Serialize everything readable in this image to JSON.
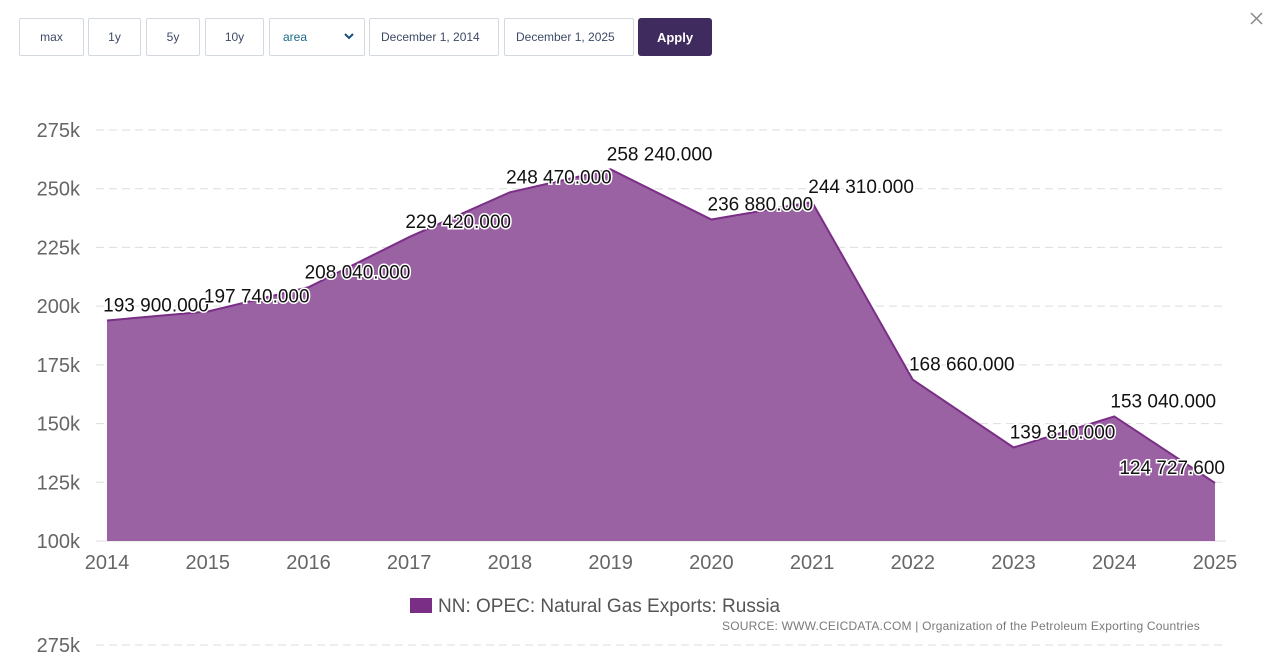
{
  "toolbar": {
    "range_buttons": [
      "max",
      "1y",
      "5y",
      "10y"
    ],
    "chart_type_selected": "area",
    "start_date": "December 1, 2014",
    "end_date": "December 1, 2025",
    "apply_label": "Apply"
  },
  "colors": {
    "area_fill": "#9a62a3",
    "area_line": "#7a2e86",
    "legend_swatch": "#7a2e86",
    "apply_bg": "#3f2b5e"
  },
  "chart_data": {
    "type": "area",
    "x": [
      "2014",
      "2015",
      "2016",
      "2017",
      "2018",
      "2019",
      "2020",
      "2021",
      "2022",
      "2023",
      "2024",
      "2025"
    ],
    "series": [
      {
        "name": "NN: OPEC: Natural Gas Exports: Russia",
        "values": [
          193900,
          197740,
          208040,
          229420,
          248470,
          258240,
          236880,
          244310,
          168660,
          139810,
          153040,
          124727.6
        ],
        "labels": [
          "193 900.000",
          "197 740.000",
          "208 040.000",
          "229 420.000",
          "248 470.000",
          "258 240.000",
          "236 880.000",
          "244 310.000",
          "168 660.000",
          "139 810.000",
          "153 040.000",
          "124 727.600"
        ]
      }
    ],
    "ylim": [
      100000,
      275000
    ],
    "yticks": [
      "100k",
      "125k",
      "150k",
      "175k",
      "200k",
      "225k",
      "250k",
      "275k"
    ],
    "grid": true,
    "legend_position": "bottom"
  },
  "next_chart_first_tick": "275k",
  "source_text": "SOURCE: WWW.CEICDATA.COM | Organization of the Petroleum Exporting Countries"
}
